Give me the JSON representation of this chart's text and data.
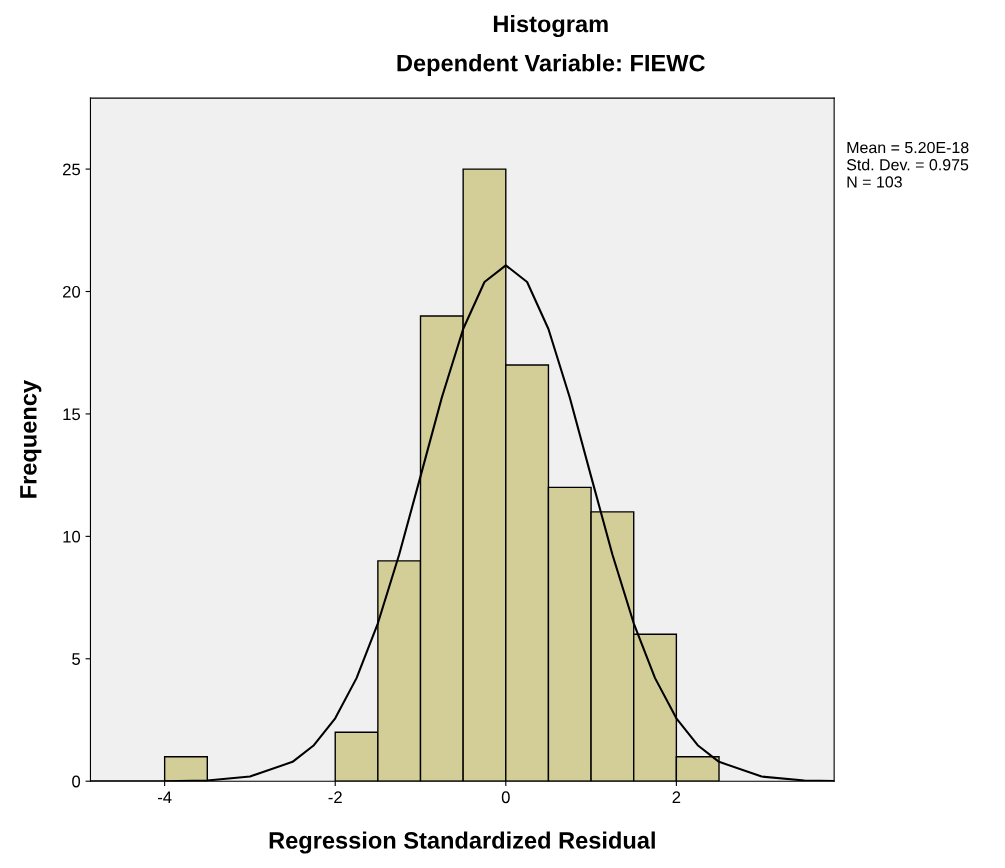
{
  "chart_data": {
    "type": "histogram",
    "title": "Histogram",
    "subtitle": "Dependent Variable: FIEWC",
    "xlabel": "Regression Standardized Residual",
    "ylabel": "Frequency",
    "bins": [
      -4,
      -3.5,
      -3,
      -2.5,
      -2,
      -1.5,
      -1,
      -0.5,
      0,
      0.5,
      1,
      1.5,
      2,
      2.5
    ],
    "values": [
      1,
      0,
      0,
      0,
      2,
      9,
      19,
      25,
      17,
      12,
      11,
      6,
      1
    ],
    "color": "#d3ce97",
    "series": [
      {
        "type": "line",
        "color": "#000000",
        "x": [
          -4.87,
          -4,
          -3.5,
          -3,
          -2.5,
          -2.25,
          -2,
          -1.75,
          -1.5,
          -1.25,
          -1,
          -0.75,
          -0.5,
          -0.25,
          0,
          0.25,
          0.5,
          0.75,
          1,
          1.25,
          1.5,
          1.75,
          2,
          2.25,
          2.5,
          3,
          3.5,
          3.85
        ],
        "values": [
          0,
          0,
          0.03,
          0.19,
          0.79,
          1.47,
          2.57,
          4.21,
          6.45,
          9.26,
          12.45,
          15.67,
          18.47,
          20.39,
          21.07,
          20.39,
          18.47,
          15.67,
          12.45,
          9.26,
          6.45,
          4.21,
          2.57,
          1.47,
          0.79,
          0.19,
          0.03,
          0.01
        ]
      }
    ],
    "annotations": [
      "Mean = 5.20E-18\nStd. Dev. = 0.975\nN = 103"
    ],
    "xlim": [
      -4.87,
      3.85
    ],
    "ylim": [
      0,
      27.9
    ],
    "xticks": [
      -4,
      -2,
      0,
      2
    ],
    "yticks": [
      0,
      5,
      10,
      15,
      20,
      25
    ],
    "grid": false,
    "legend": false
  }
}
